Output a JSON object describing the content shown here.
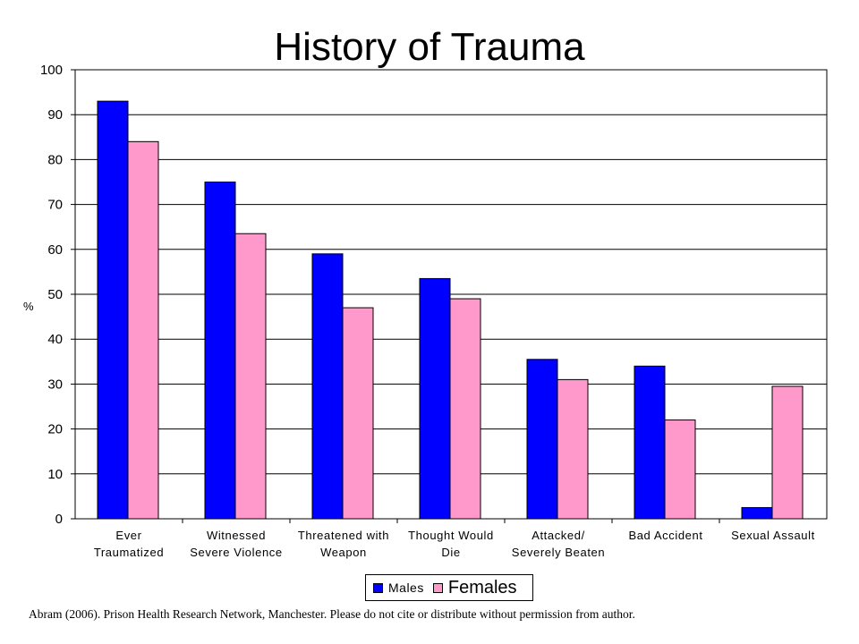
{
  "chart_data": {
    "type": "bar",
    "title": "History of Trauma",
    "ylabel": "%",
    "ylim": [
      0,
      100
    ],
    "yticks": [
      0,
      10,
      20,
      30,
      40,
      50,
      60,
      70,
      80,
      90,
      100
    ],
    "grid": true,
    "legend_position": "bottom",
    "categories": [
      [
        "Ever",
        "Traumatized"
      ],
      [
        "Witnessed",
        "Severe Violence"
      ],
      [
        "Threatened with",
        "Weapon"
      ],
      [
        "Thought Would",
        "Die"
      ],
      [
        "Attacked/",
        "Severely Beaten"
      ],
      [
        "Bad Accident"
      ],
      [
        "Sexual Assault"
      ]
    ],
    "series": [
      {
        "name": "Males",
        "color": "#0000ff",
        "values": [
          93,
          75,
          59,
          53.5,
          35.5,
          34,
          2.5
        ]
      },
      {
        "name": "Females",
        "color": "#ff99cc",
        "values": [
          84,
          63.5,
          47,
          49,
          31,
          22,
          29.5
        ]
      }
    ]
  },
  "footer": "Abram (2006). Prison Health Research Network, Manchester.  Please do not cite or distribute without permission  from author."
}
